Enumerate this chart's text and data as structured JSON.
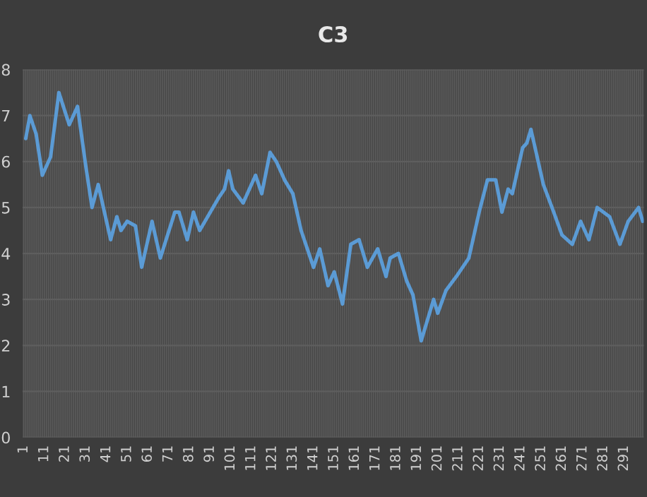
{
  "chart_data": {
    "type": "line",
    "title": "C3",
    "series": [
      {
        "color": "#5b9bd5",
        "x": [
          2,
          4,
          7,
          10,
          14,
          18,
          23,
          27,
          31,
          34,
          37,
          43,
          46,
          48,
          51,
          55,
          58,
          63,
          67,
          74,
          76,
          80,
          83,
          86,
          95,
          98,
          100,
          102,
          107,
          113,
          116,
          120,
          123,
          127,
          131,
          135,
          141,
          144,
          148,
          151,
          155,
          159,
          163,
          167,
          172,
          176,
          178,
          182,
          186,
          189,
          193,
          199,
          201,
          205,
          210,
          216,
          221,
          225,
          229,
          232,
          235,
          237,
          242,
          244,
          246,
          248,
          252,
          257,
          261,
          266,
          270,
          274,
          278,
          284,
          289,
          293,
          298,
          300
        ],
        "values": [
          6.5,
          7.0,
          6.6,
          5.7,
          6.1,
          7.5,
          6.8,
          7.2,
          5.9,
          5.0,
          5.5,
          4.3,
          4.8,
          4.5,
          4.7,
          4.6,
          3.7,
          4.7,
          3.9,
          4.9,
          4.9,
          4.3,
          4.9,
          4.5,
          5.2,
          5.4,
          5.8,
          5.4,
          5.1,
          5.7,
          5.3,
          6.2,
          6.0,
          5.6,
          5.3,
          4.5,
          3.7,
          4.1,
          3.3,
          3.6,
          2.9,
          4.2,
          4.3,
          3.7,
          4.1,
          3.5,
          3.9,
          4.0,
          3.4,
          3.1,
          2.1,
          3.0,
          2.7,
          3.2,
          3.5,
          3.9,
          4.9,
          5.6,
          5.6,
          4.9,
          5.4,
          5.3,
          6.3,
          6.4,
          6.7,
          6.3,
          5.5,
          4.9,
          4.4,
          4.2,
          4.7,
          4.3,
          5.0,
          4.8,
          4.2,
          4.7,
          5.0,
          4.7
        ]
      }
    ],
    "xlim": [
      0.5,
      300.5
    ],
    "xticks": [
      1,
      11,
      21,
      31,
      41,
      51,
      61,
      71,
      81,
      91,
      101,
      111,
      121,
      131,
      141,
      151,
      161,
      171,
      181,
      191,
      201,
      211,
      221,
      231,
      241,
      251,
      261,
      271,
      281,
      291
    ],
    "ylim": [
      0,
      8
    ],
    "yticks": [
      0,
      1,
      2,
      3,
      4,
      5,
      6,
      7,
      8
    ],
    "grid": true,
    "line_style": "solid",
    "marker": "none",
    "legend": false
  }
}
